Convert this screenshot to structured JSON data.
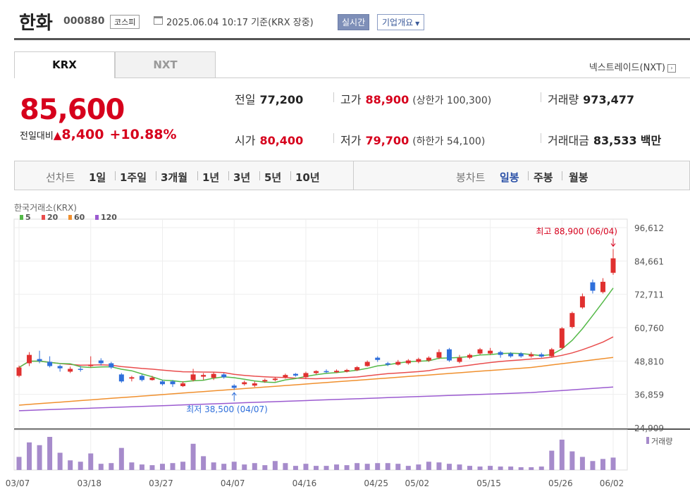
{
  "header": {
    "company": "한화",
    "code": "000880",
    "market": "코스피",
    "datetime": "2025.06.04 10:17  기준(KRX 장중)",
    "realtime": "실시간",
    "company_info": "기업개요"
  },
  "tabs": {
    "krx": "KRX",
    "nxt": "NXT",
    "nxt_link": "넥스트레이드(NXT)"
  },
  "price": {
    "current": "85,600",
    "change_label": "전일대비",
    "change_amount": "8,400",
    "change_pct": "+10.88%"
  },
  "info": {
    "prev_close": {
      "label": "전일",
      "value": "77,200"
    },
    "high": {
      "label": "고가",
      "value": "88,900",
      "sub": "(상한가 100,300)"
    },
    "volume": {
      "label": "거래량",
      "value": "973,477"
    },
    "open": {
      "label": "시가",
      "value": "80,400"
    },
    "low": {
      "label": "저가",
      "value": "79,700",
      "sub": "(하한가 54,100)"
    },
    "amount": {
      "label": "거래대금",
      "value": "83,533",
      "unit": "백만"
    }
  },
  "period_bar": {
    "line_label": "선차트",
    "line_items": [
      "1일",
      "1주일",
      "3개월",
      "1년",
      "3년",
      "5년",
      "10년"
    ],
    "candle_label": "봉차트",
    "candle_items": [
      "일봉",
      "주봉",
      "월봉"
    ],
    "active_candle": "일봉"
  },
  "chart_data": {
    "type": "candlestick",
    "source": "한국거래소(KRX)",
    "ma_legend": [
      {
        "name": "5",
        "color": "#54b948"
      },
      {
        "name": "20",
        "color": "#e94d4d"
      },
      {
        "name": "60",
        "color": "#f0902e"
      },
      {
        "name": "120",
        "color": "#9b5bd0"
      }
    ],
    "y_ticks": [
      "96,612",
      "84,661",
      "72,711",
      "60,760",
      "48,810",
      "36,859",
      "24,909"
    ],
    "ylim": [
      24909,
      96612
    ],
    "x_ticks": [
      "03/07",
      "03/18",
      "03/27",
      "04/07",
      "04/16",
      "04/25",
      "05/02",
      "05/15",
      "05/26",
      "06/02"
    ],
    "x_tick_index": [
      0,
      7,
      14,
      21,
      28,
      35,
      39,
      46,
      53,
      58
    ],
    "max_label": "최고 88,900 (06/04)",
    "min_label": "최저 38,500 (04/07)",
    "volume_label": "거래량",
    "candles": [
      {
        "o": 43500,
        "c": 46500,
        "h": 47200,
        "l": 43000
      },
      {
        "o": 48000,
        "c": 51000,
        "h": 52000,
        "l": 47000
      },
      {
        "o": 49500,
        "c": 48800,
        "h": 52500,
        "l": 48000
      },
      {
        "o": 48500,
        "c": 47000,
        "h": 50500,
        "l": 46500
      },
      {
        "o": 47000,
        "c": 46200,
        "h": 47500,
        "l": 45000
      },
      {
        "o": 45000,
        "c": 46000,
        "h": 46800,
        "l": 44500
      },
      {
        "o": 46000,
        "c": 45800,
        "h": 47000,
        "l": 45000
      },
      {
        "o": 47000,
        "c": 47500,
        "h": 50500,
        "l": 46500
      },
      {
        "o": 49000,
        "c": 48000,
        "h": 49800,
        "l": 47200
      },
      {
        "o": 48000,
        "c": 46500,
        "h": 48500,
        "l": 46000
      },
      {
        "o": 44000,
        "c": 41500,
        "h": 44500,
        "l": 41000
      },
      {
        "o": 42500,
        "c": 43000,
        "h": 43500,
        "l": 41500
      },
      {
        "o": 43500,
        "c": 42000,
        "h": 44000,
        "l": 41500
      },
      {
        "o": 42000,
        "c": 42800,
        "h": 43500,
        "l": 41800
      },
      {
        "o": 41500,
        "c": 40500,
        "h": 42000,
        "l": 40000
      },
      {
        "o": 41500,
        "c": 40500,
        "h": 42000,
        "l": 39500
      },
      {
        "o": 39800,
        "c": 40800,
        "h": 41500,
        "l": 39500
      },
      {
        "o": 42000,
        "c": 44000,
        "h": 46000,
        "l": 41500
      },
      {
        "o": 43200,
        "c": 43800,
        "h": 44500,
        "l": 42000
      },
      {
        "o": 42800,
        "c": 44200,
        "h": 44800,
        "l": 42000
      },
      {
        "o": 44000,
        "c": 43000,
        "h": 44500,
        "l": 42500
      },
      {
        "o": 40000,
        "c": 39200,
        "h": 40500,
        "l": 38500
      },
      {
        "o": 40500,
        "c": 41200,
        "h": 41800,
        "l": 40000
      },
      {
        "o": 40000,
        "c": 40800,
        "h": 41500,
        "l": 39500
      },
      {
        "o": 41500,
        "c": 42000,
        "h": 42500,
        "l": 41000
      },
      {
        "o": 42000,
        "c": 42500,
        "h": 43000,
        "l": 41500
      },
      {
        "o": 43000,
        "c": 43800,
        "h": 44300,
        "l": 42500
      },
      {
        "o": 44200,
        "c": 43600,
        "h": 44500,
        "l": 43200
      },
      {
        "o": 43000,
        "c": 44500,
        "h": 45000,
        "l": 42500
      },
      {
        "o": 44500,
        "c": 45200,
        "h": 45500,
        "l": 44000
      },
      {
        "o": 45200,
        "c": 44800,
        "h": 45800,
        "l": 44500
      },
      {
        "o": 44800,
        "c": 45300,
        "h": 45800,
        "l": 44500
      },
      {
        "o": 45000,
        "c": 45600,
        "h": 46000,
        "l": 44700
      },
      {
        "o": 45500,
        "c": 46600,
        "h": 47000,
        "l": 45200
      },
      {
        "o": 47000,
        "c": 48500,
        "h": 49000,
        "l": 46800
      },
      {
        "o": 50000,
        "c": 49200,
        "h": 50500,
        "l": 48500
      },
      {
        "o": 48000,
        "c": 47500,
        "h": 48500,
        "l": 47000
      },
      {
        "o": 47500,
        "c": 48500,
        "h": 49200,
        "l": 47200
      },
      {
        "o": 48000,
        "c": 49000,
        "h": 49500,
        "l": 47500
      },
      {
        "o": 48500,
        "c": 49500,
        "h": 50000,
        "l": 48000
      },
      {
        "o": 49000,
        "c": 50000,
        "h": 50500,
        "l": 48500
      },
      {
        "o": 50000,
        "c": 52000,
        "h": 53000,
        "l": 49500
      },
      {
        "o": 53000,
        "c": 49000,
        "h": 53500,
        "l": 48500
      },
      {
        "o": 48500,
        "c": 50000,
        "h": 51000,
        "l": 48000
      },
      {
        "o": 50000,
        "c": 51000,
        "h": 51500,
        "l": 49500
      },
      {
        "o": 51500,
        "c": 53000,
        "h": 53500,
        "l": 51000
      },
      {
        "o": 51500,
        "c": 52500,
        "h": 53500,
        "l": 51000
      },
      {
        "o": 52000,
        "c": 51000,
        "h": 52500,
        "l": 50000
      },
      {
        "o": 51500,
        "c": 50500,
        "h": 52000,
        "l": 50000
      },
      {
        "o": 51500,
        "c": 50500,
        "h": 52000,
        "l": 50000
      },
      {
        "o": 50500,
        "c": 51200,
        "h": 52000,
        "l": 50000
      },
      {
        "o": 51200,
        "c": 50400,
        "h": 51800,
        "l": 50000
      },
      {
        "o": 50500,
        "c": 53000,
        "h": 53500,
        "l": 50200
      },
      {
        "o": 53500,
        "c": 60500,
        "h": 61000,
        "l": 53000
      },
      {
        "o": 61000,
        "c": 66000,
        "h": 66500,
        "l": 60500
      },
      {
        "o": 68000,
        "c": 72000,
        "h": 73000,
        "l": 67500
      },
      {
        "o": 77000,
        "c": 74000,
        "h": 78000,
        "l": 73000
      },
      {
        "o": 73500,
        "c": 77200,
        "h": 78500,
        "l": 73000
      },
      {
        "o": 80400,
        "c": 85600,
        "h": 88900,
        "l": 79700
      }
    ],
    "volumes": [
      19,
      40,
      36,
      48,
      25,
      14,
      12,
      24,
      9,
      10,
      32,
      11,
      8,
      7,
      9,
      10,
      12,
      38,
      20,
      11,
      9,
      12,
      8,
      10,
      7,
      13,
      10,
      6,
      9,
      6,
      6,
      8,
      7,
      10,
      9,
      10,
      10,
      9,
      6,
      8,
      12,
      11,
      9,
      8,
      6,
      5,
      6,
      5,
      5,
      4,
      4,
      5,
      28,
      44,
      27,
      19,
      13,
      16,
      18
    ]
  }
}
